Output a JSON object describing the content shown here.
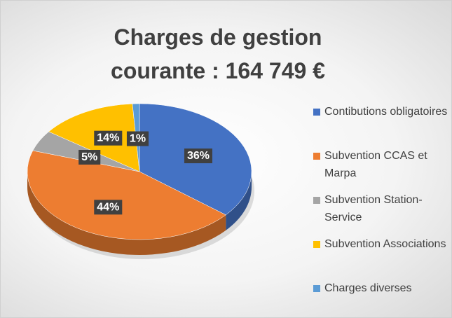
{
  "chart_data": {
    "type": "pie",
    "title": "Charges de gestion courante : 164 749 €",
    "categories": [
      "Contibutions obligatoires",
      "Subvention CCAS et Marpa",
      "Subvention Station-Service",
      "Subvention Associations",
      "Charges diverses"
    ],
    "values": [
      36,
      44,
      5,
      14,
      1
    ],
    "value_labels": [
      "36%",
      "44%",
      "5%",
      "14%",
      "1%"
    ],
    "colors": [
      "#4472c4",
      "#ed7d31",
      "#a5a5a5",
      "#ffc000",
      "#5b9bd5"
    ],
    "legend": "right"
  }
}
